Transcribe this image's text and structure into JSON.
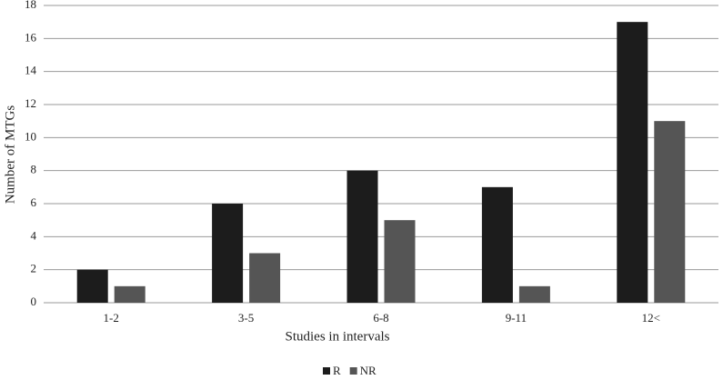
{
  "chart_data": {
    "type": "bar",
    "x_label": "Studies in intervals",
    "y_label": "Number of MTGs",
    "categories": [
      "1-2",
      "3-5",
      "6-8",
      "9-11",
      "12<"
    ],
    "series": [
      {
        "name": "R",
        "color": "#1c1c1c",
        "values": [
          2,
          6,
          8,
          7,
          17
        ]
      },
      {
        "name": "NR",
        "color": "#555555",
        "values": [
          1,
          3,
          5,
          1,
          11
        ]
      }
    ],
    "ylim": [
      0,
      18
    ],
    "yticks": [
      0,
      2,
      4,
      6,
      8,
      10,
      12,
      14,
      16,
      18
    ],
    "grid": true,
    "legend": "bottom"
  }
}
